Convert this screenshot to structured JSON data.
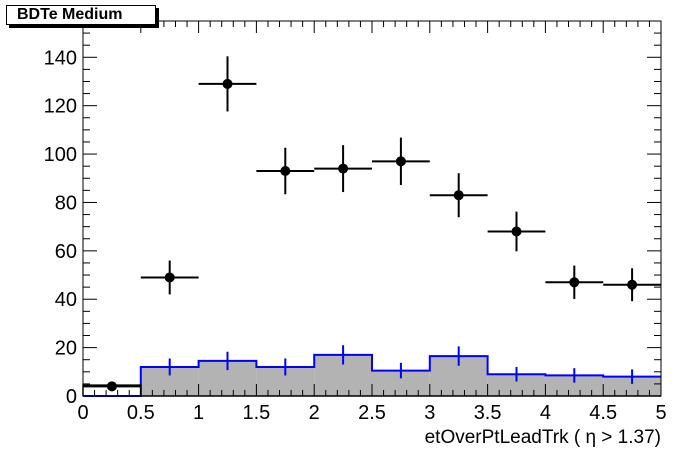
{
  "chart_data": {
    "type": "histogram",
    "title": "BDTe Medium",
    "xlabel": "etOverPtLeadTrk ( η > 1.37)",
    "ylabel": "",
    "xlim": [
      0,
      5
    ],
    "ylim": [
      0,
      155
    ],
    "x_ticks": [
      0,
      0.5,
      1,
      1.5,
      2,
      2.5,
      3,
      3.5,
      4,
      4.5,
      5
    ],
    "y_ticks": [
      0,
      20,
      40,
      60,
      80,
      100,
      120,
      140
    ],
    "grid": false,
    "bin_edges": [
      0,
      0.5,
      1,
      1.5,
      2,
      2.5,
      3,
      3.5,
      4,
      4.5,
      5
    ],
    "series": [
      {
        "style": "filled-histogram",
        "fill_color": "#b3b3b3",
        "line_color": "#0000ff",
        "values": [
          0,
          12,
          14.5,
          12,
          17,
          10.5,
          16.5,
          9,
          8.5,
          8
        ],
        "errors": [
          0,
          3.5,
          3.8,
          3.5,
          4,
          3.2,
          4,
          3,
          3,
          3
        ]
      },
      {
        "style": "histogram-line",
        "line_color": "#000000",
        "values": [
          4.5,
          0,
          0,
          0,
          0,
          0,
          0,
          0,
          0,
          0
        ]
      },
      {
        "style": "points-with-errors",
        "marker_color": "#000000",
        "x": [
          0.25,
          0.75,
          1.25,
          1.75,
          2.25,
          2.75,
          3.25,
          3.75,
          4.25,
          4.75
        ],
        "values": [
          4,
          49,
          129,
          93,
          94,
          97,
          83,
          68,
          47,
          46
        ],
        "errors": [
          2,
          7,
          11.4,
          9.6,
          9.7,
          9.8,
          9.1,
          8.2,
          6.9,
          6.8
        ]
      }
    ]
  }
}
